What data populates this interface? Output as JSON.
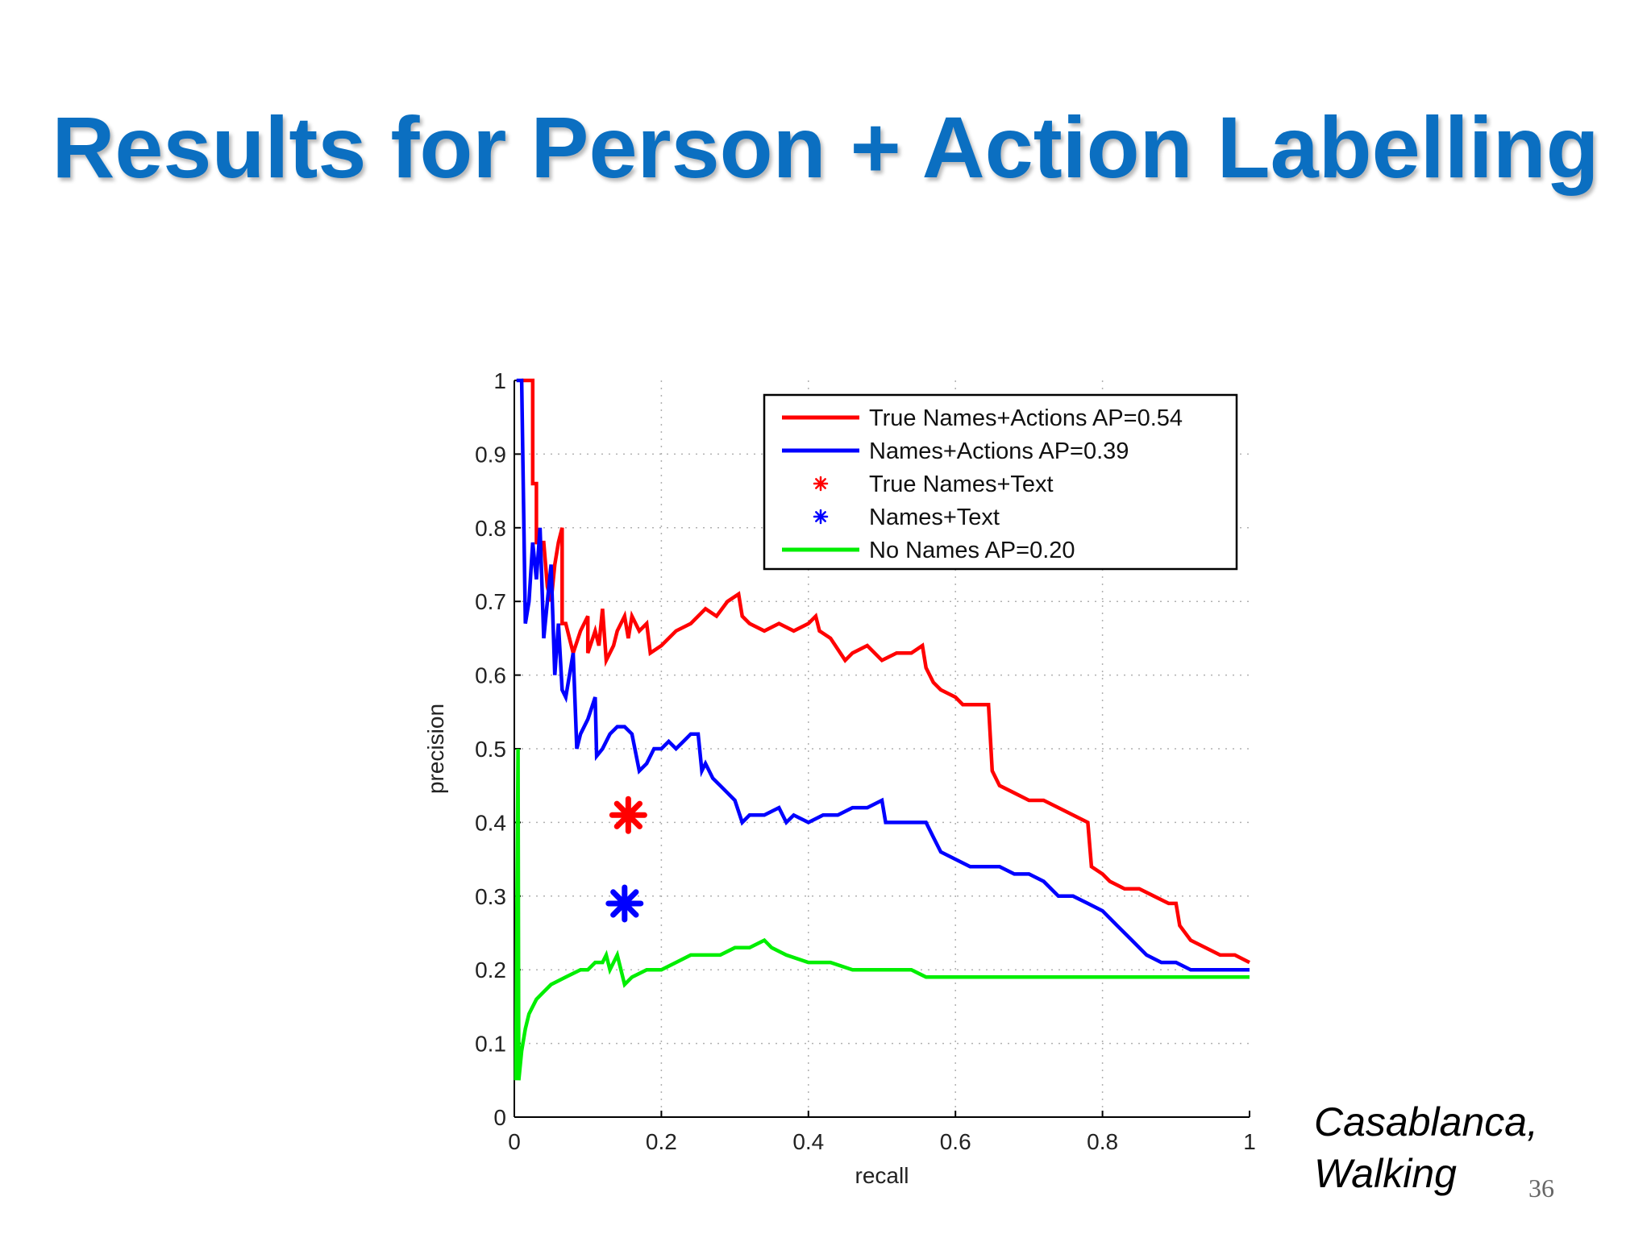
{
  "slide": {
    "title": "Results for Person + Action Labelling",
    "caption_line1": "Casablanca,",
    "caption_line2": "Walking",
    "page_number": "36"
  },
  "chart_data": {
    "type": "line",
    "title": "",
    "xlabel": "recall",
    "ylabel": "precision",
    "xlim": [
      0,
      1
    ],
    "ylim": [
      0,
      1
    ],
    "grid": true,
    "legend_position": "top-right",
    "xticks": [
      "0",
      "0.2",
      "0.4",
      "0.6",
      "0.8",
      "1"
    ],
    "yticks": [
      "0",
      "0.1",
      "0.2",
      "0.3",
      "0.4",
      "0.5",
      "0.6",
      "0.7",
      "0.8",
      "0.9",
      "1"
    ],
    "series": [
      {
        "name": "True Names+Actions AP=0.54",
        "color": "#ff0000",
        "kind": "line",
        "points": [
          [
            0.01,
            1.0
          ],
          [
            0.025,
            1.0
          ],
          [
            0.025,
            0.86
          ],
          [
            0.03,
            0.86
          ],
          [
            0.03,
            0.78
          ],
          [
            0.04,
            0.78
          ],
          [
            0.045,
            0.72
          ],
          [
            0.05,
            0.7
          ],
          [
            0.055,
            0.75
          ],
          [
            0.06,
            0.78
          ],
          [
            0.065,
            0.8
          ],
          [
            0.065,
            0.67
          ],
          [
            0.07,
            0.67
          ],
          [
            0.075,
            0.65
          ],
          [
            0.08,
            0.63
          ],
          [
            0.09,
            0.66
          ],
          [
            0.1,
            0.68
          ],
          [
            0.1,
            0.63
          ],
          [
            0.11,
            0.66
          ],
          [
            0.115,
            0.64
          ],
          [
            0.12,
            0.69
          ],
          [
            0.125,
            0.62
          ],
          [
            0.135,
            0.64
          ],
          [
            0.14,
            0.66
          ],
          [
            0.15,
            0.68
          ],
          [
            0.155,
            0.65
          ],
          [
            0.16,
            0.68
          ],
          [
            0.17,
            0.66
          ],
          [
            0.18,
            0.67
          ],
          [
            0.185,
            0.63
          ],
          [
            0.2,
            0.64
          ],
          [
            0.22,
            0.66
          ],
          [
            0.24,
            0.67
          ],
          [
            0.26,
            0.69
          ],
          [
            0.275,
            0.68
          ],
          [
            0.29,
            0.7
          ],
          [
            0.305,
            0.71
          ],
          [
            0.31,
            0.68
          ],
          [
            0.32,
            0.67
          ],
          [
            0.34,
            0.66
          ],
          [
            0.36,
            0.67
          ],
          [
            0.38,
            0.66
          ],
          [
            0.4,
            0.67
          ],
          [
            0.41,
            0.68
          ],
          [
            0.415,
            0.66
          ],
          [
            0.43,
            0.65
          ],
          [
            0.45,
            0.62
          ],
          [
            0.46,
            0.63
          ],
          [
            0.48,
            0.64
          ],
          [
            0.5,
            0.62
          ],
          [
            0.52,
            0.63
          ],
          [
            0.54,
            0.63
          ],
          [
            0.555,
            0.64
          ],
          [
            0.56,
            0.61
          ],
          [
            0.57,
            0.59
          ],
          [
            0.58,
            0.58
          ],
          [
            0.6,
            0.57
          ],
          [
            0.61,
            0.56
          ],
          [
            0.63,
            0.56
          ],
          [
            0.645,
            0.56
          ],
          [
            0.65,
            0.47
          ],
          [
            0.66,
            0.45
          ],
          [
            0.68,
            0.44
          ],
          [
            0.7,
            0.43
          ],
          [
            0.72,
            0.43
          ],
          [
            0.74,
            0.42
          ],
          [
            0.76,
            0.41
          ],
          [
            0.78,
            0.4
          ],
          [
            0.785,
            0.34
          ],
          [
            0.8,
            0.33
          ],
          [
            0.81,
            0.32
          ],
          [
            0.83,
            0.31
          ],
          [
            0.85,
            0.31
          ],
          [
            0.87,
            0.3
          ],
          [
            0.89,
            0.29
          ],
          [
            0.9,
            0.29
          ],
          [
            0.905,
            0.26
          ],
          [
            0.92,
            0.24
          ],
          [
            0.94,
            0.23
          ],
          [
            0.96,
            0.22
          ],
          [
            0.98,
            0.22
          ],
          [
            1.0,
            0.21
          ]
        ]
      },
      {
        "name": "Names+Actions AP=0.39",
        "color": "#0000ff",
        "kind": "line",
        "points": [
          [
            0.003,
            1.0
          ],
          [
            0.01,
            1.0
          ],
          [
            0.015,
            0.67
          ],
          [
            0.02,
            0.7
          ],
          [
            0.025,
            0.78
          ],
          [
            0.03,
            0.73
          ],
          [
            0.035,
            0.8
          ],
          [
            0.04,
            0.65
          ],
          [
            0.045,
            0.7
          ],
          [
            0.05,
            0.75
          ],
          [
            0.055,
            0.6
          ],
          [
            0.06,
            0.67
          ],
          [
            0.065,
            0.58
          ],
          [
            0.07,
            0.57
          ],
          [
            0.075,
            0.6
          ],
          [
            0.08,
            0.63
          ],
          [
            0.085,
            0.5
          ],
          [
            0.09,
            0.52
          ],
          [
            0.1,
            0.54
          ],
          [
            0.11,
            0.57
          ],
          [
            0.112,
            0.49
          ],
          [
            0.12,
            0.5
          ],
          [
            0.13,
            0.52
          ],
          [
            0.14,
            0.53
          ],
          [
            0.15,
            0.53
          ],
          [
            0.16,
            0.52
          ],
          [
            0.17,
            0.47
          ],
          [
            0.18,
            0.48
          ],
          [
            0.19,
            0.5
          ],
          [
            0.2,
            0.5
          ],
          [
            0.21,
            0.51
          ],
          [
            0.22,
            0.5
          ],
          [
            0.23,
            0.51
          ],
          [
            0.24,
            0.52
          ],
          [
            0.25,
            0.52
          ],
          [
            0.255,
            0.47
          ],
          [
            0.26,
            0.48
          ],
          [
            0.27,
            0.46
          ],
          [
            0.28,
            0.45
          ],
          [
            0.29,
            0.44
          ],
          [
            0.3,
            0.43
          ],
          [
            0.31,
            0.4
          ],
          [
            0.32,
            0.41
          ],
          [
            0.34,
            0.41
          ],
          [
            0.36,
            0.42
          ],
          [
            0.37,
            0.4
          ],
          [
            0.38,
            0.41
          ],
          [
            0.4,
            0.4
          ],
          [
            0.42,
            0.41
          ],
          [
            0.44,
            0.41
          ],
          [
            0.46,
            0.42
          ],
          [
            0.48,
            0.42
          ],
          [
            0.5,
            0.43
          ],
          [
            0.505,
            0.4
          ],
          [
            0.52,
            0.4
          ],
          [
            0.54,
            0.4
          ],
          [
            0.56,
            0.4
          ],
          [
            0.57,
            0.38
          ],
          [
            0.58,
            0.36
          ],
          [
            0.6,
            0.35
          ],
          [
            0.62,
            0.34
          ],
          [
            0.64,
            0.34
          ],
          [
            0.66,
            0.34
          ],
          [
            0.68,
            0.33
          ],
          [
            0.7,
            0.33
          ],
          [
            0.72,
            0.32
          ],
          [
            0.74,
            0.3
          ],
          [
            0.76,
            0.3
          ],
          [
            0.78,
            0.29
          ],
          [
            0.8,
            0.28
          ],
          [
            0.82,
            0.26
          ],
          [
            0.84,
            0.24
          ],
          [
            0.86,
            0.22
          ],
          [
            0.88,
            0.21
          ],
          [
            0.9,
            0.21
          ],
          [
            0.92,
            0.2
          ],
          [
            0.94,
            0.2
          ],
          [
            0.96,
            0.2
          ],
          [
            0.98,
            0.2
          ],
          [
            1.0,
            0.2
          ]
        ]
      },
      {
        "name": "True Names+Text",
        "color": "#ff0000",
        "kind": "marker",
        "points": [
          [
            0.155,
            0.41
          ]
        ]
      },
      {
        "name": "Names+Text",
        "color": "#0000ff",
        "kind": "marker",
        "points": [
          [
            0.15,
            0.29
          ]
        ]
      },
      {
        "name": "No Names AP=0.20",
        "color": "#00ee00",
        "kind": "line",
        "points": [
          [
            0.002,
            0.05
          ],
          [
            0.005,
            0.5
          ],
          [
            0.006,
            0.05
          ],
          [
            0.01,
            0.09
          ],
          [
            0.015,
            0.12
          ],
          [
            0.02,
            0.14
          ],
          [
            0.03,
            0.16
          ],
          [
            0.04,
            0.17
          ],
          [
            0.05,
            0.18
          ],
          [
            0.07,
            0.19
          ],
          [
            0.09,
            0.2
          ],
          [
            0.1,
            0.2
          ],
          [
            0.11,
            0.21
          ],
          [
            0.12,
            0.21
          ],
          [
            0.125,
            0.22
          ],
          [
            0.13,
            0.2
          ],
          [
            0.14,
            0.22
          ],
          [
            0.15,
            0.18
          ],
          [
            0.16,
            0.19
          ],
          [
            0.18,
            0.2
          ],
          [
            0.2,
            0.2
          ],
          [
            0.22,
            0.21
          ],
          [
            0.24,
            0.22
          ],
          [
            0.26,
            0.22
          ],
          [
            0.28,
            0.22
          ],
          [
            0.3,
            0.23
          ],
          [
            0.32,
            0.23
          ],
          [
            0.34,
            0.24
          ],
          [
            0.35,
            0.23
          ],
          [
            0.37,
            0.22
          ],
          [
            0.4,
            0.21
          ],
          [
            0.43,
            0.21
          ],
          [
            0.46,
            0.2
          ],
          [
            0.5,
            0.2
          ],
          [
            0.54,
            0.2
          ],
          [
            0.56,
            0.19
          ],
          [
            0.6,
            0.19
          ],
          [
            0.64,
            0.19
          ],
          [
            0.7,
            0.19
          ],
          [
            0.75,
            0.19
          ],
          [
            0.8,
            0.19
          ],
          [
            0.85,
            0.19
          ],
          [
            0.9,
            0.19
          ],
          [
            0.95,
            0.19
          ],
          [
            1.0,
            0.19
          ]
        ]
      }
    ]
  }
}
